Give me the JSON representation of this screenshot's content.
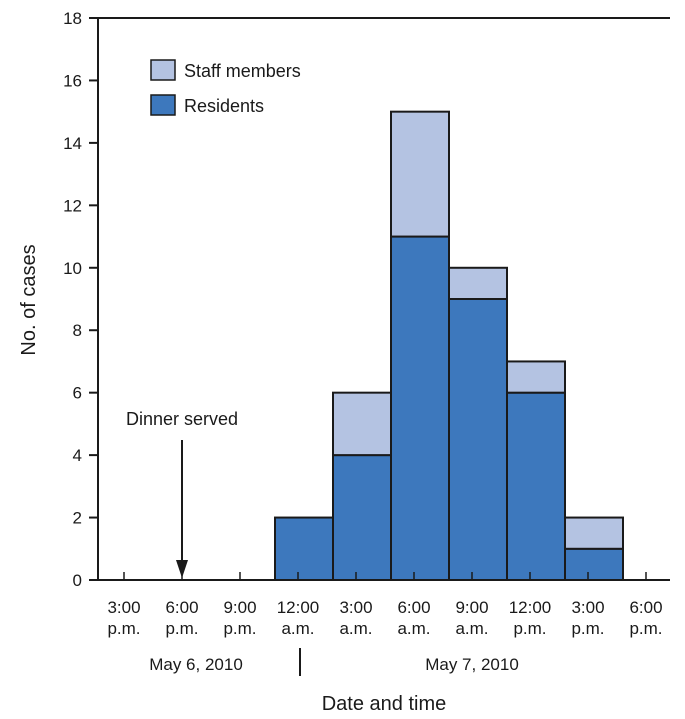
{
  "chart_data": {
    "type": "bar",
    "stacked": true,
    "x_unit": "3-hour interval",
    "categories": [
      "3:00 p.m. May 6, 2010",
      "6:00 p.m. May 6, 2010",
      "9:00 p.m. May 6, 2010",
      "12:00 a.m. May 7, 2010",
      "3:00 a.m. May 7, 2010",
      "6:00 a.m. May 7, 2010",
      "9:00 a.m. May 7, 2010",
      "12:00 p.m. May 7, 2010",
      "3:00 p.m. May 7, 2010"
    ],
    "series": [
      {
        "name": "Residents",
        "color": "#3d78bd",
        "values": [
          0,
          0,
          0,
          2,
          4,
          11,
          9,
          6,
          1
        ]
      },
      {
        "name": "Staff members",
        "color": "#b4c3e2",
        "values": [
          0,
          0,
          0,
          0,
          2,
          4,
          1,
          1,
          1
        ]
      }
    ],
    "xlabel": "Date and time",
    "ylabel": "No. of cases",
    "ylim": [
      0,
      18
    ],
    "yticks": [
      "0",
      "2",
      "4",
      "6",
      "8",
      "10",
      "12",
      "14",
      "16",
      "18"
    ],
    "xtick_labels": [
      [
        "3:00",
        "p.m."
      ],
      [
        "6:00",
        "p.m."
      ],
      [
        "9:00",
        "p.m."
      ],
      [
        "12:00",
        "a.m."
      ],
      [
        "3:00",
        "a.m."
      ],
      [
        "6:00",
        "a.m."
      ],
      [
        "9:00",
        "a.m."
      ],
      [
        "12:00",
        "p.m."
      ],
      [
        "3:00",
        "p.m."
      ],
      [
        "6:00",
        "p.m."
      ]
    ],
    "date_labels": [
      "May 6, 2010",
      "May 7, 2010"
    ],
    "annotation": {
      "text": "Dinner served",
      "at": "6:00 p.m. May 6, 2010"
    },
    "legend": {
      "placement": "top-left",
      "items": [
        "Staff members",
        "Residents"
      ]
    },
    "grid": false
  }
}
